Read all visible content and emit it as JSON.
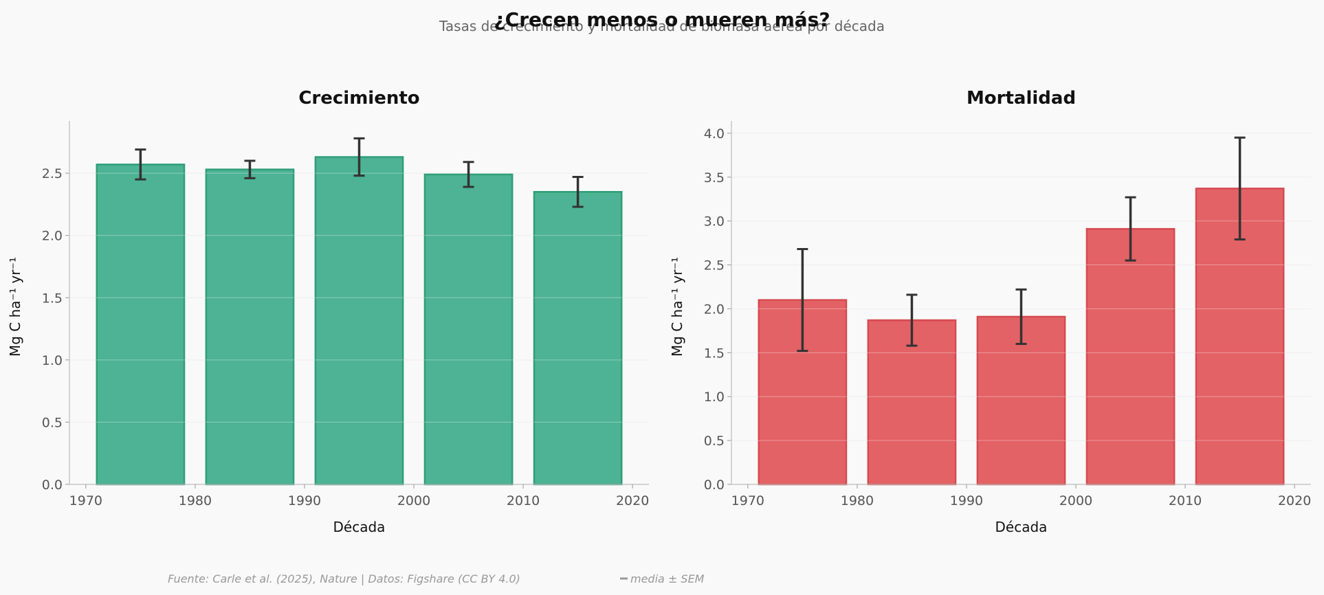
{
  "title": "¿Crecen menos o mueren más?",
  "subtitle": "Tasas de crecimiento y mortalidad de biomasa aérea por década",
  "footer": {
    "source": "Fuente: Carle et al. (2025), Nature | Datos: Figshare (CC BY 4.0)",
    "legend": "media ± SEM"
  },
  "colors": {
    "growth_fill": "#4db394",
    "growth_edge": "#2f9e78",
    "mortality_fill": "#e36266",
    "mortality_edge": "#d54a50",
    "errorbar": "#333333"
  },
  "chart_data": [
    {
      "type": "bar",
      "title": "Crecimiento",
      "xlabel": "Década",
      "ylabel": "Mg C ha⁻¹ yr⁻¹",
      "categories": [
        1975,
        1985,
        1995,
        2005,
        2015
      ],
      "values": [
        2.57,
        2.53,
        2.63,
        2.49,
        2.35
      ],
      "errors": [
        0.12,
        0.07,
        0.15,
        0.1,
        0.12
      ],
      "bar_width": 8,
      "xlim": [
        1968.5,
        2021.5
      ],
      "ylim": [
        0,
        2.92
      ],
      "xticks": [
        1970,
        1980,
        1990,
        2000,
        2010,
        2020
      ],
      "yticks": [
        0.0,
        0.5,
        1.0,
        1.5,
        2.0,
        2.5
      ],
      "grid": true
    },
    {
      "type": "bar",
      "title": "Mortalidad",
      "xlabel": "Década",
      "ylabel": "Mg C ha⁻¹ yr⁻¹",
      "categories": [
        1975,
        1985,
        1995,
        2005,
        2015
      ],
      "values": [
        2.1,
        1.87,
        1.91,
        2.91,
        3.37
      ],
      "errors": [
        0.58,
        0.29,
        0.31,
        0.36,
        0.58
      ],
      "bar_width": 8,
      "xlim": [
        1968.5,
        2021.5
      ],
      "ylim": [
        0,
        4.14
      ],
      "xticks": [
        1970,
        1980,
        1990,
        2000,
        2010,
        2020
      ],
      "yticks": [
        0.0,
        0.5,
        1.0,
        1.5,
        2.0,
        2.5,
        3.0,
        3.5,
        4.0
      ],
      "grid": true
    }
  ]
}
